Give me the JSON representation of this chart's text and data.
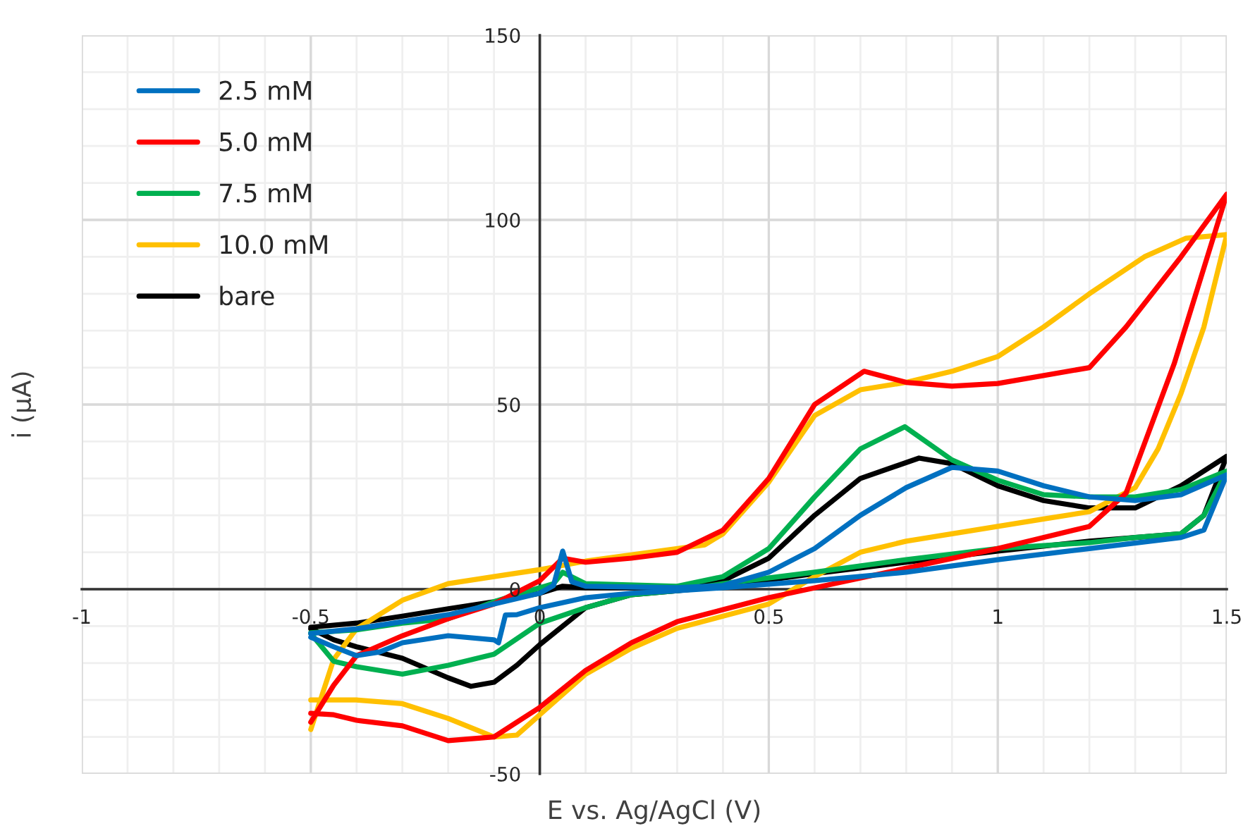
{
  "chart_data": {
    "type": "line",
    "xlabel": "E vs. Ag/AgCl (V)",
    "ylabel": "i (µA)",
    "xlim": [
      -1,
      1.5
    ],
    "ylim": [
      -50,
      150
    ],
    "xticks": [
      -1,
      -0.5,
      0,
      0.5,
      1,
      1.5
    ],
    "yticks": [
      -50,
      0,
      50,
      100,
      150
    ],
    "grid": true,
    "legend": "top left",
    "marker": "none",
    "line_style": "solid",
    "series": [
      {
        "name": "2.5 mM",
        "color": "#0070c0",
        "x": [
          -0.5,
          -0.45,
          -0.4,
          -0.35,
          -0.3,
          -0.2,
          -0.1,
          -0.09,
          -0.075,
          -0.05,
          0,
          0.1,
          0.2,
          0.3,
          0.4,
          0.6,
          0.8,
          1.0,
          1.2,
          1.4,
          1.45,
          1.5,
          1.4,
          1.3,
          1.2,
          1.1,
          1.0,
          0.9,
          0.8,
          0.7,
          0.6,
          0.5,
          0.4,
          0.3,
          0.1,
          0.07,
          0.05,
          0.03,
          0,
          -0.1,
          -0.2,
          -0.3,
          -0.4,
          -0.5
        ],
        "values": [
          -13,
          -15.6,
          -18,
          -17,
          -14.5,
          -12.6,
          -13.7,
          -14.5,
          -7,
          -6.9,
          -5,
          -2.3,
          -1.1,
          -0.4,
          0.4,
          2.3,
          4.6,
          8,
          11,
          14,
          16,
          31,
          25.6,
          24,
          25,
          28,
          32,
          33,
          27.5,
          20,
          11,
          4.6,
          1,
          0.4,
          0.8,
          2,
          10.3,
          1,
          -1.1,
          -4,
          -6.9,
          -8.8,
          -10.7,
          -12
        ]
      },
      {
        "name": "5.0 mM",
        "color": "#ff0000",
        "x": [
          -0.5,
          -0.45,
          -0.4,
          -0.3,
          -0.2,
          -0.1,
          0,
          0.1,
          0.2,
          0.3,
          0.5,
          1.0,
          1.2,
          1.28,
          1.385,
          1.5,
          1.4,
          1.28,
          1.2,
          1.0,
          0.9,
          0.8,
          0.708,
          0.6,
          0.5,
          0.4,
          0.3,
          0.2,
          0.1,
          0.05,
          0,
          -0.1,
          -0.2,
          -0.3,
          -0.4,
          -0.45,
          -0.5
        ],
        "values": [
          -33.6,
          -34,
          -35.5,
          -37,
          -41,
          -40,
          -32,
          -22,
          -14.5,
          -8.8,
          -2.3,
          11,
          17,
          26,
          61,
          107,
          90,
          71,
          60,
          55.7,
          55,
          56,
          59,
          50,
          30,
          16,
          10,
          8.4,
          7.3,
          8.4,
          2.3,
          -4,
          -8,
          -12.6,
          -18,
          -26,
          -36
        ]
      },
      {
        "name": "7.5 mM",
        "color": "#00b050",
        "x": [
          -0.5,
          -0.45,
          -0.4,
          -0.3,
          -0.2,
          -0.1,
          0,
          0.1,
          0.2,
          0.3,
          0.4,
          0.6,
          0.8,
          1.0,
          1.2,
          1.3,
          1.4,
          1.45,
          1.5,
          1.4,
          1.3,
          1.2,
          1.1,
          1.0,
          0.9,
          0.797,
          0.7,
          0.6,
          0.5,
          0.4,
          0.3,
          0.1,
          0.05,
          0.03,
          0,
          -0.1,
          -0.2,
          -0.3,
          -0.4,
          -0.5
        ],
        "values": [
          -12,
          -19.5,
          -21,
          -23,
          -20.6,
          -17.6,
          -9.2,
          -5,
          -1.5,
          -0.4,
          1.5,
          4.6,
          8,
          11,
          12.6,
          14,
          15,
          20,
          32,
          27,
          25,
          25,
          25.6,
          29.5,
          35,
          44,
          38,
          25,
          11,
          3.4,
          0.8,
          1.5,
          4.6,
          1.5,
          0.4,
          -3.4,
          -8,
          -9.2,
          -11,
          -11.8
        ]
      },
      {
        "name": "10.0 mM",
        "color": "#ffc000",
        "x": [
          -0.5,
          -0.4,
          -0.3,
          -0.2,
          -0.1,
          -0.05,
          0,
          0.1,
          0.2,
          0.3,
          0.5,
          0.6,
          0.7,
          0.8,
          0.9,
          1.0,
          1.1,
          1.2,
          1.3,
          1.35,
          1.4,
          1.45,
          1.5,
          1.41,
          1.32,
          1.2,
          1.1,
          1.0,
          0.9,
          0.8,
          0.7,
          0.6,
          0.5,
          0.4,
          0.36,
          0.1,
          0,
          -0.1,
          -0.2,
          -0.3,
          -0.4,
          -0.45,
          -0.5
        ],
        "values": [
          -30,
          -30,
          -31,
          -35,
          -40,
          -39.5,
          -34,
          -23,
          -16,
          -10.6,
          -4,
          3.4,
          10,
          13,
          15,
          17,
          19,
          21,
          27.5,
          38,
          53,
          71,
          96,
          95,
          90,
          80,
          71,
          63,
          59,
          56,
          54,
          47,
          29,
          15,
          12,
          7.6,
          5.3,
          3.4,
          1.5,
          -3,
          -10.7,
          -19,
          -38
        ]
      },
      {
        "name": "bare",
        "color": "#000000",
        "x": [
          -0.5,
          -0.45,
          -0.4,
          -0.3,
          -0.2,
          -0.15,
          -0.1,
          -0.05,
          0,
          0.1,
          0.2,
          0.3,
          0.4,
          0.6,
          0.8,
          1.0,
          1.2,
          1.4,
          1.45,
          1.5,
          1.4,
          1.3,
          1.2,
          1.1,
          1.0,
          0.9,
          0.828,
          0.7,
          0.6,
          0.5,
          0.4,
          0.3,
          0.1,
          0.05,
          0,
          -0.1,
          -0.2,
          -0.3,
          -0.4,
          -0.5
        ],
        "values": [
          -10.7,
          -13.7,
          -15.6,
          -18.7,
          -24,
          -26.3,
          -25.2,
          -20.6,
          -15,
          -5,
          -1.5,
          -0.4,
          0.8,
          4.2,
          7.3,
          10.3,
          13,
          15,
          20,
          36,
          28,
          22,
          22,
          24,
          28,
          34,
          35.5,
          30,
          20,
          8.4,
          2.3,
          0.4,
          0.4,
          0.8,
          -1.1,
          -3.4,
          -5.3,
          -7.3,
          -9.2,
          -10.3
        ]
      }
    ]
  }
}
